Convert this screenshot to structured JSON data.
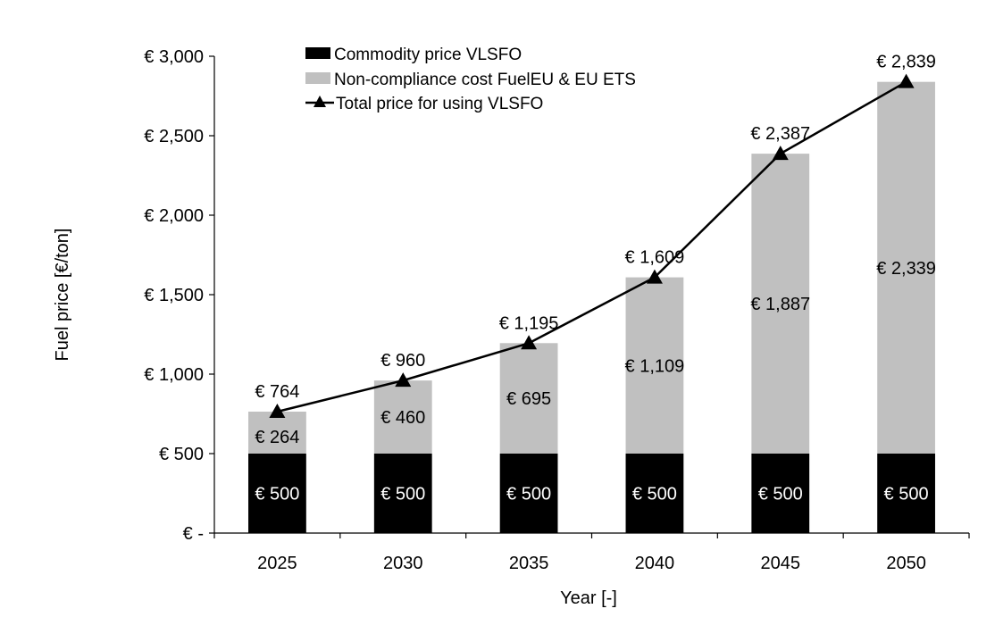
{
  "chart_data": {
    "type": "bar",
    "stacked": true,
    "categories": [
      "2025",
      "2030",
      "2035",
      "2040",
      "2045",
      "2050"
    ],
    "series": [
      {
        "name": "Commodity price VLSFO",
        "kind": "bar",
        "color": "#000000",
        "values": [
          500,
          500,
          500,
          500,
          500,
          500
        ],
        "labels": [
          "€ 500",
          "€ 500",
          "€ 500",
          "€ 500",
          "€ 500",
          "€ 500"
        ]
      },
      {
        "name": "Non-compliance cost FuelEU & EU ETS",
        "kind": "bar",
        "color": "#c0c0c0",
        "values": [
          264,
          460,
          695,
          1109,
          1887,
          2339
        ],
        "labels": [
          "€ 264",
          "€ 460",
          "€ 695",
          "€ 1,109",
          "€ 1,887",
          "€ 2,339"
        ]
      },
      {
        "name": "Total price for using VLSFO",
        "kind": "line",
        "marker": "triangle",
        "color": "#000000",
        "values": [
          764,
          960,
          1195,
          1609,
          2387,
          2839
        ],
        "labels": [
          "€ 764",
          "€ 960",
          "€ 1,195",
          "€ 1,609",
          "€ 2,387",
          "€ 2,839"
        ]
      }
    ],
    "xlabel": "Year [-]",
    "ylabel": "Fuel price [€/ton]",
    "ylim": [
      0,
      3000
    ],
    "yticks": [
      0,
      500,
      1000,
      1500,
      2000,
      2500,
      3000
    ],
    "ytick_labels": [
      "€ -",
      "€ 500",
      "€ 1,000",
      "€ 1,500",
      "€ 2,000",
      "€ 2,500",
      "€ 3,000"
    ],
    "grid": false,
    "legend_position": "top-left"
  }
}
